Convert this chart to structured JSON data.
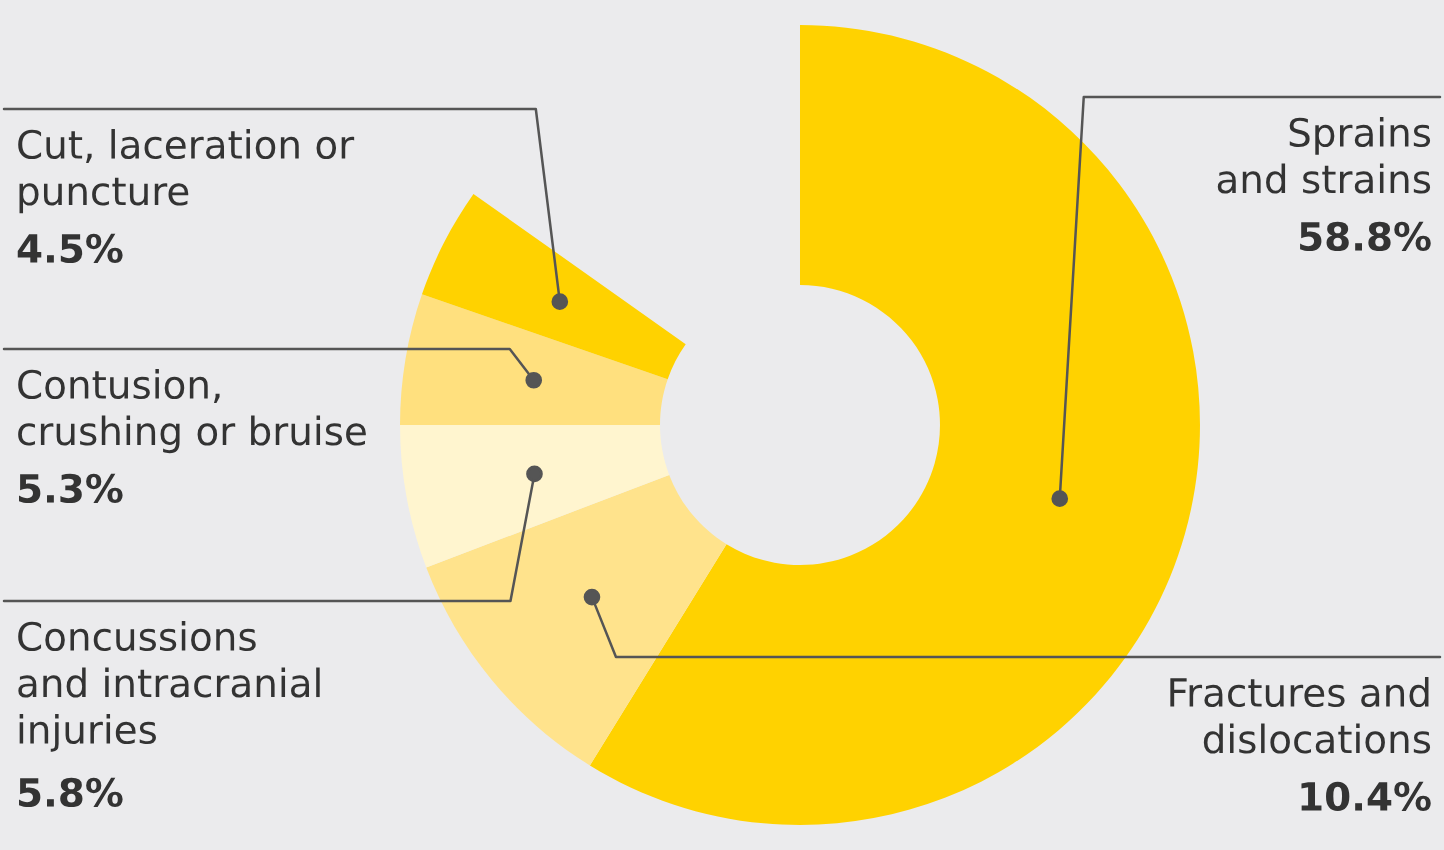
{
  "chart_data": {
    "type": "donut",
    "categories": [
      "Sprains\nand strains",
      "Fractures and\ndislocations",
      "Concussions\nand intracranial\ninjuries",
      "Contusion,\ncrushing or bruise",
      "Cut, laceration or\npuncture"
    ],
    "values": [
      58.8,
      10.4,
      5.8,
      5.3,
      4.5
    ],
    "colors": [
      "#ffd200",
      "#ffe38c",
      "#fff5cf",
      "#ffe07e",
      "#ffd200"
    ],
    "value_labels": [
      "58.8%",
      "10.4%",
      "5.8%",
      "5.3%",
      "4.5%"
    ]
  }
}
